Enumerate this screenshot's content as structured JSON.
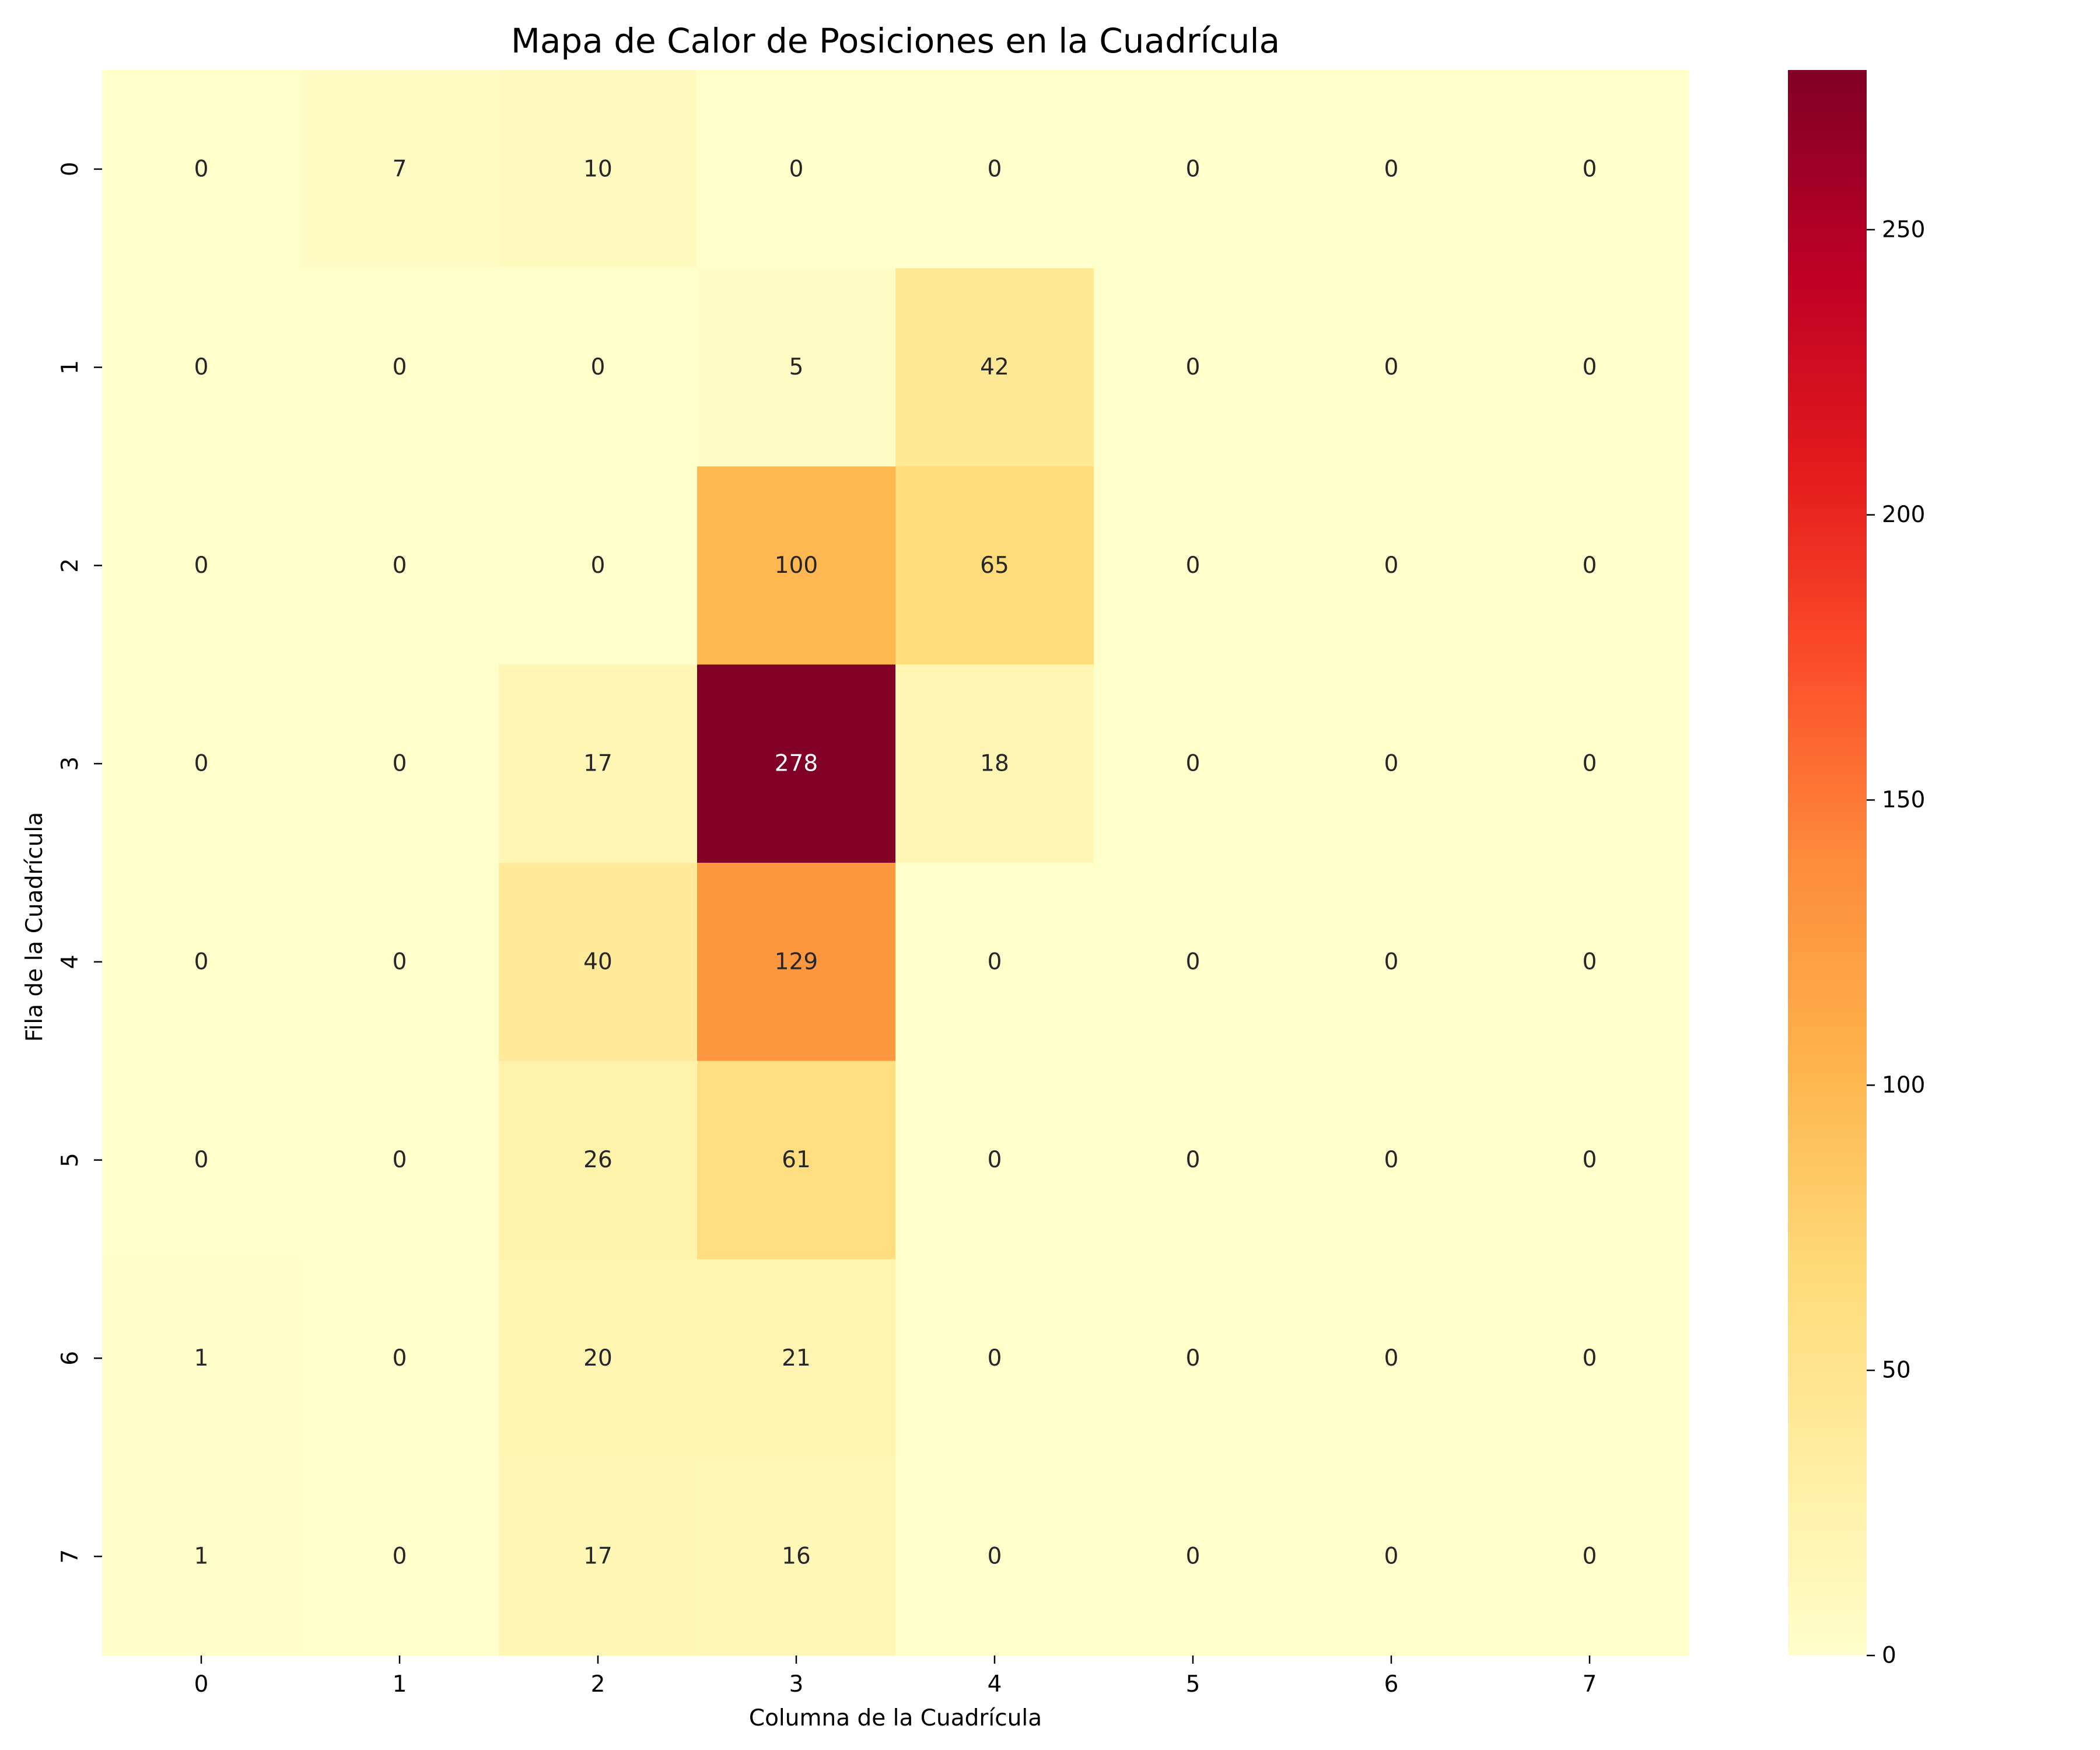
{
  "chart_data": {
    "type": "heatmap",
    "title": "Mapa de Calor de Posiciones en la Cuadrícula",
    "xlabel": "Columna de la Cuadrícula",
    "ylabel": "Fila de la Cuadrícula",
    "x_categories": [
      "0",
      "1",
      "2",
      "3",
      "4",
      "5",
      "6",
      "7"
    ],
    "y_categories": [
      "0",
      "1",
      "2",
      "3",
      "4",
      "5",
      "6",
      "7"
    ],
    "values": [
      [
        0,
        7,
        10,
        0,
        0,
        0,
        0,
        0
      ],
      [
        0,
        0,
        0,
        5,
        42,
        0,
        0,
        0
      ],
      [
        0,
        0,
        0,
        100,
        65,
        0,
        0,
        0
      ],
      [
        0,
        0,
        17,
        278,
        18,
        0,
        0,
        0
      ],
      [
        0,
        0,
        40,
        129,
        0,
        0,
        0,
        0
      ],
      [
        0,
        0,
        26,
        61,
        0,
        0,
        0,
        0
      ],
      [
        1,
        0,
        20,
        21,
        0,
        0,
        0,
        0
      ],
      [
        1,
        0,
        17,
        16,
        0,
        0,
        0,
        0
      ]
    ],
    "colorbar": {
      "min": 0,
      "max": 278,
      "ticks": [
        0,
        50,
        100,
        150,
        200,
        250
      ],
      "colormap": "YlOrRd"
    },
    "annotations": "cell values shown",
    "grid": false
  }
}
